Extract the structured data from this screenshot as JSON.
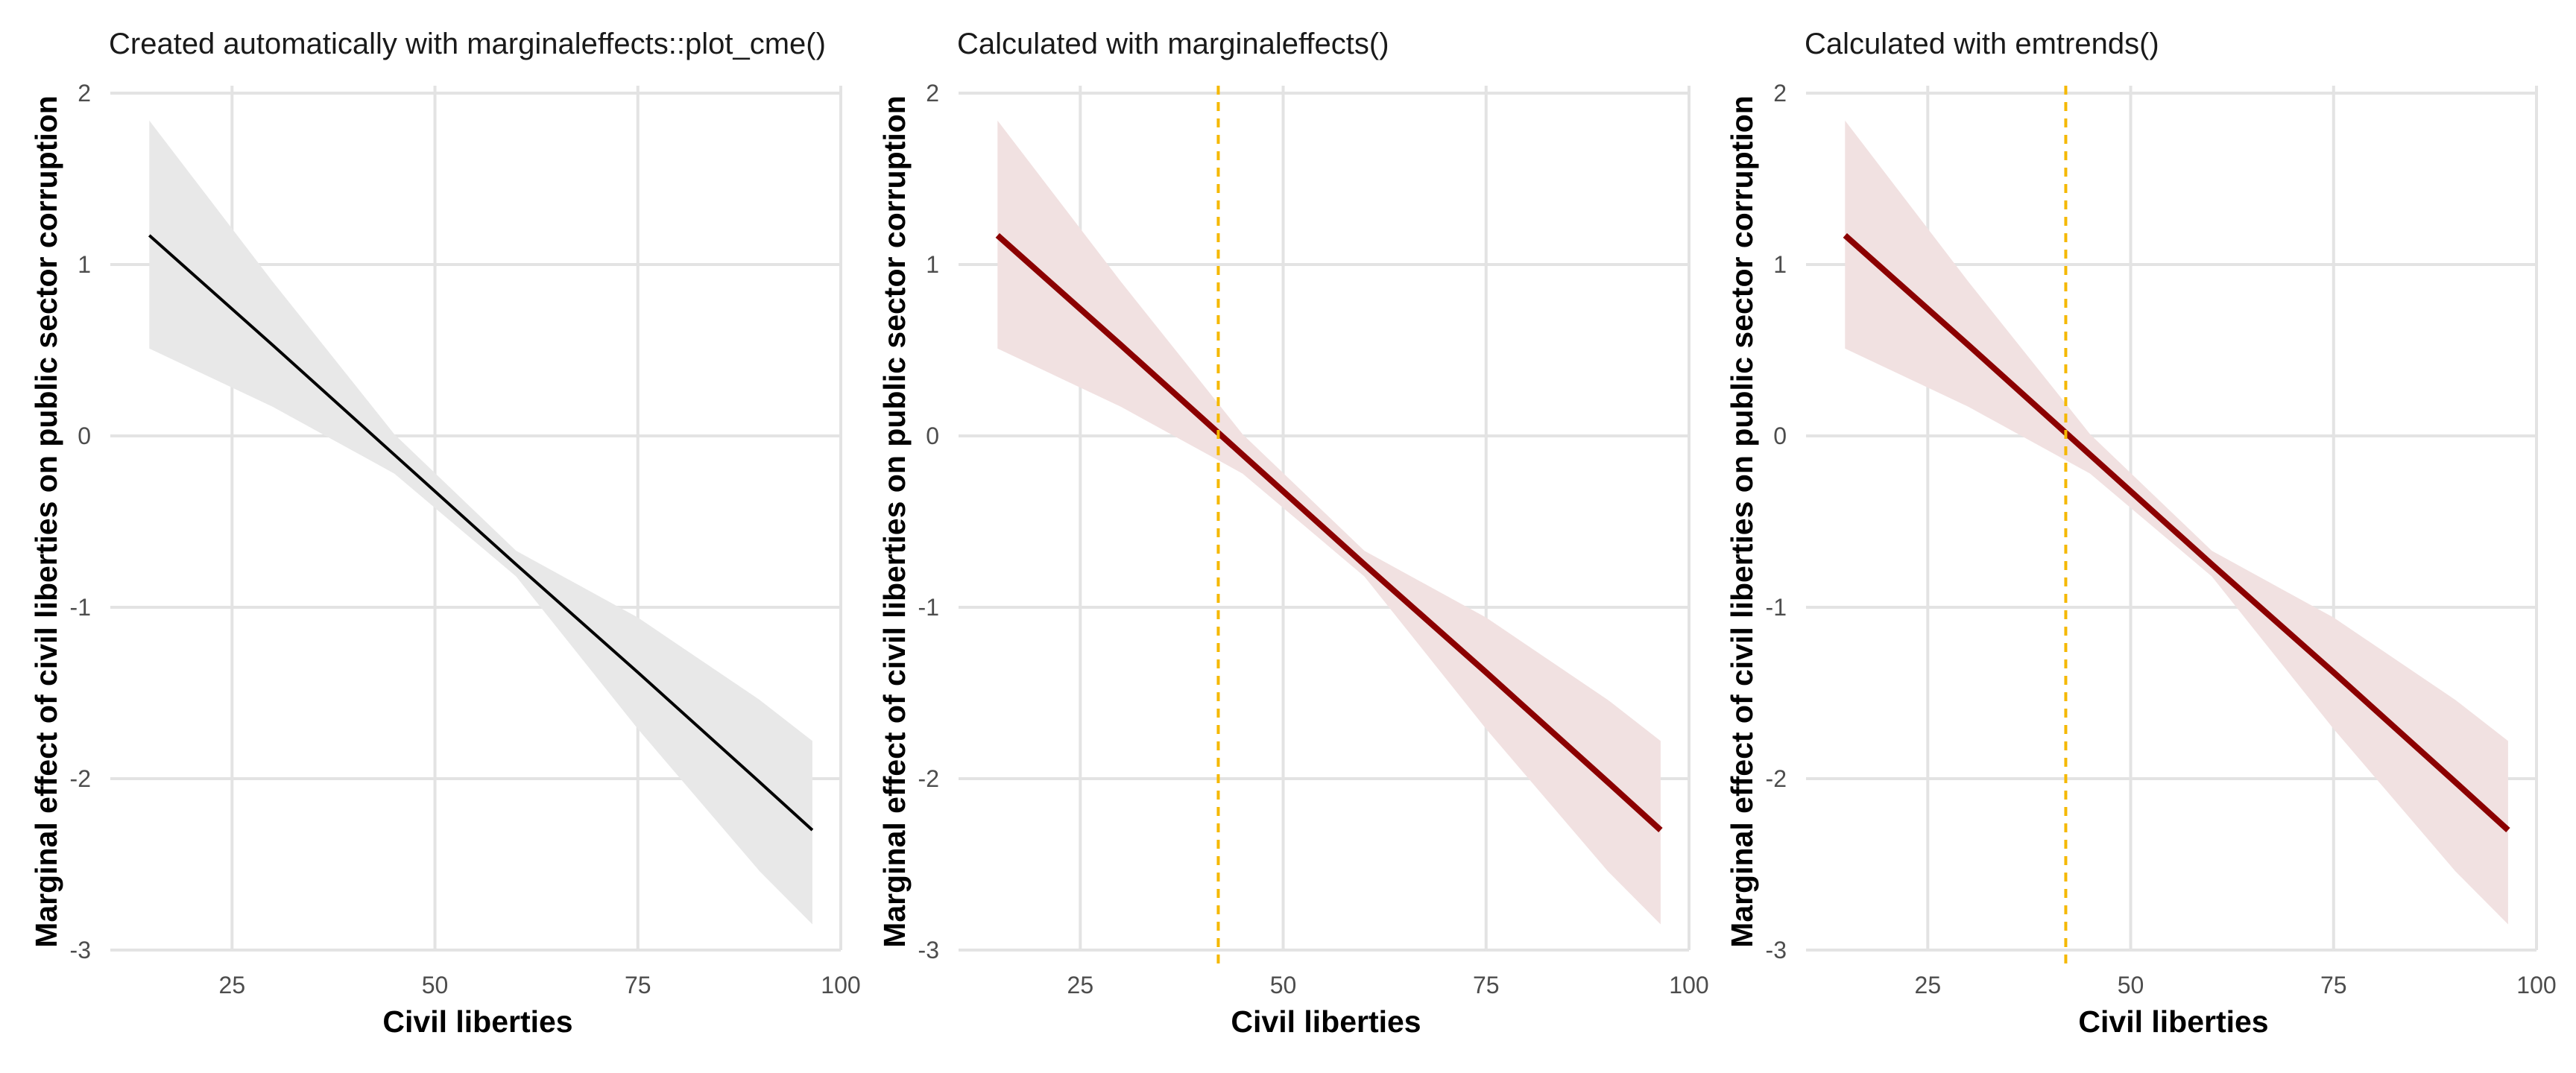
{
  "chart_data": [
    {
      "type": "line",
      "title": "Created automatically with marginaleffects::plot_cme()",
      "xlabel": "Civil liberties",
      "ylabel": "Marginal effect of civil liberties on public sector corruption",
      "xlim": [
        10,
        100
      ],
      "ylim": [
        -3,
        2
      ],
      "xticks": [
        25,
        50,
        75,
        100
      ],
      "yticks": [
        -3,
        -2,
        -1,
        0,
        1,
        2
      ],
      "grid": true,
      "line_color": "#000000",
      "ribbon_color": "#e8e8e8",
      "series": [
        {
          "x": [
            14.8,
            30,
            45,
            60,
            75,
            90,
            96.5
          ],
          "y": [
            1.17,
            0.53,
            -0.11,
            -0.75,
            -1.38,
            -2.02,
            -2.3
          ],
          "lower": [
            0.51,
            0.17,
            -0.22,
            -0.82,
            -1.71,
            -2.54,
            -2.85
          ],
          "upper": [
            1.84,
            0.9,
            0.01,
            -0.67,
            -1.06,
            -1.54,
            -1.78
          ]
        }
      ]
    },
    {
      "type": "line",
      "title": "Calculated with marginaleffects()",
      "xlabel": "Civil liberties",
      "ylabel": "Marginal effect of civil liberties on public sector corruption",
      "xlim": [
        10,
        100
      ],
      "ylim": [
        -3,
        2
      ],
      "xticks": [
        25,
        50,
        75,
        100
      ],
      "yticks": [
        -3,
        -2,
        -1,
        0,
        1,
        2
      ],
      "grid": true,
      "line_color": "#8b0000",
      "ribbon_color": "#f1e1e1",
      "vline": {
        "x": 42,
        "color": "#f5b800"
      },
      "series": [
        {
          "x": [
            14.8,
            30,
            45,
            60,
            75,
            90,
            96.5
          ],
          "y": [
            1.17,
            0.53,
            -0.11,
            -0.75,
            -1.38,
            -2.02,
            -2.3
          ],
          "lower": [
            0.51,
            0.17,
            -0.22,
            -0.82,
            -1.71,
            -2.54,
            -2.85
          ],
          "upper": [
            1.84,
            0.9,
            0.01,
            -0.67,
            -1.06,
            -1.54,
            -1.78
          ]
        }
      ]
    },
    {
      "type": "line",
      "title": "Calculated with emtrends()",
      "xlabel": "Civil liberties",
      "ylabel": "Marginal effect of civil liberties on public sector corruption",
      "xlim": [
        10,
        100
      ],
      "ylim": [
        -3,
        2
      ],
      "xticks": [
        25,
        50,
        75,
        100
      ],
      "yticks": [
        -3,
        -2,
        -1,
        0,
        1,
        2
      ],
      "grid": true,
      "line_color": "#8b0000",
      "ribbon_color": "#f1e1e1",
      "vline": {
        "x": 42,
        "color": "#f5b800"
      },
      "series": [
        {
          "x": [
            14.8,
            30,
            45,
            60,
            75,
            90,
            96.5
          ],
          "y": [
            1.17,
            0.53,
            -0.11,
            -0.75,
            -1.38,
            -2.02,
            -2.3
          ],
          "lower": [
            0.51,
            0.17,
            -0.22,
            -0.82,
            -1.71,
            -2.54,
            -2.85
          ],
          "upper": [
            1.84,
            0.9,
            0.01,
            -0.67,
            -1.06,
            -1.54,
            -1.78
          ]
        }
      ]
    }
  ]
}
